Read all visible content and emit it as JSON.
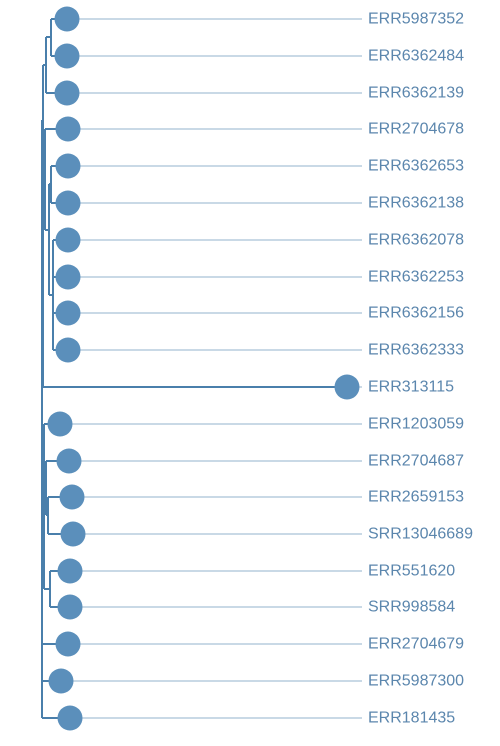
{
  "colors": {
    "branch": "#4a7fab",
    "leader": "#a9c2d6",
    "node": "#5b8fbb",
    "label": "#5b86ad"
  },
  "leaves": [
    {
      "label": "ERR5987352"
    },
    {
      "label": "ERR6362484"
    },
    {
      "label": "ERR6362139"
    },
    {
      "label": "ERR2704678"
    },
    {
      "label": "ERR6362653"
    },
    {
      "label": "ERR6362138"
    },
    {
      "label": "ERR6362078"
    },
    {
      "label": "ERR6362253"
    },
    {
      "label": "ERR6362156"
    },
    {
      "label": "ERR6362333"
    },
    {
      "label": "ERR313115"
    },
    {
      "label": "ERR1203059"
    },
    {
      "label": "ERR2704687"
    },
    {
      "label": "ERR2659153"
    },
    {
      "label": "SRR13046689"
    },
    {
      "label": "ERR551620"
    },
    {
      "label": "SRR998584"
    },
    {
      "label": "ERR2704679"
    },
    {
      "label": "ERR5987300"
    },
    {
      "label": "ERR181435"
    }
  ]
}
